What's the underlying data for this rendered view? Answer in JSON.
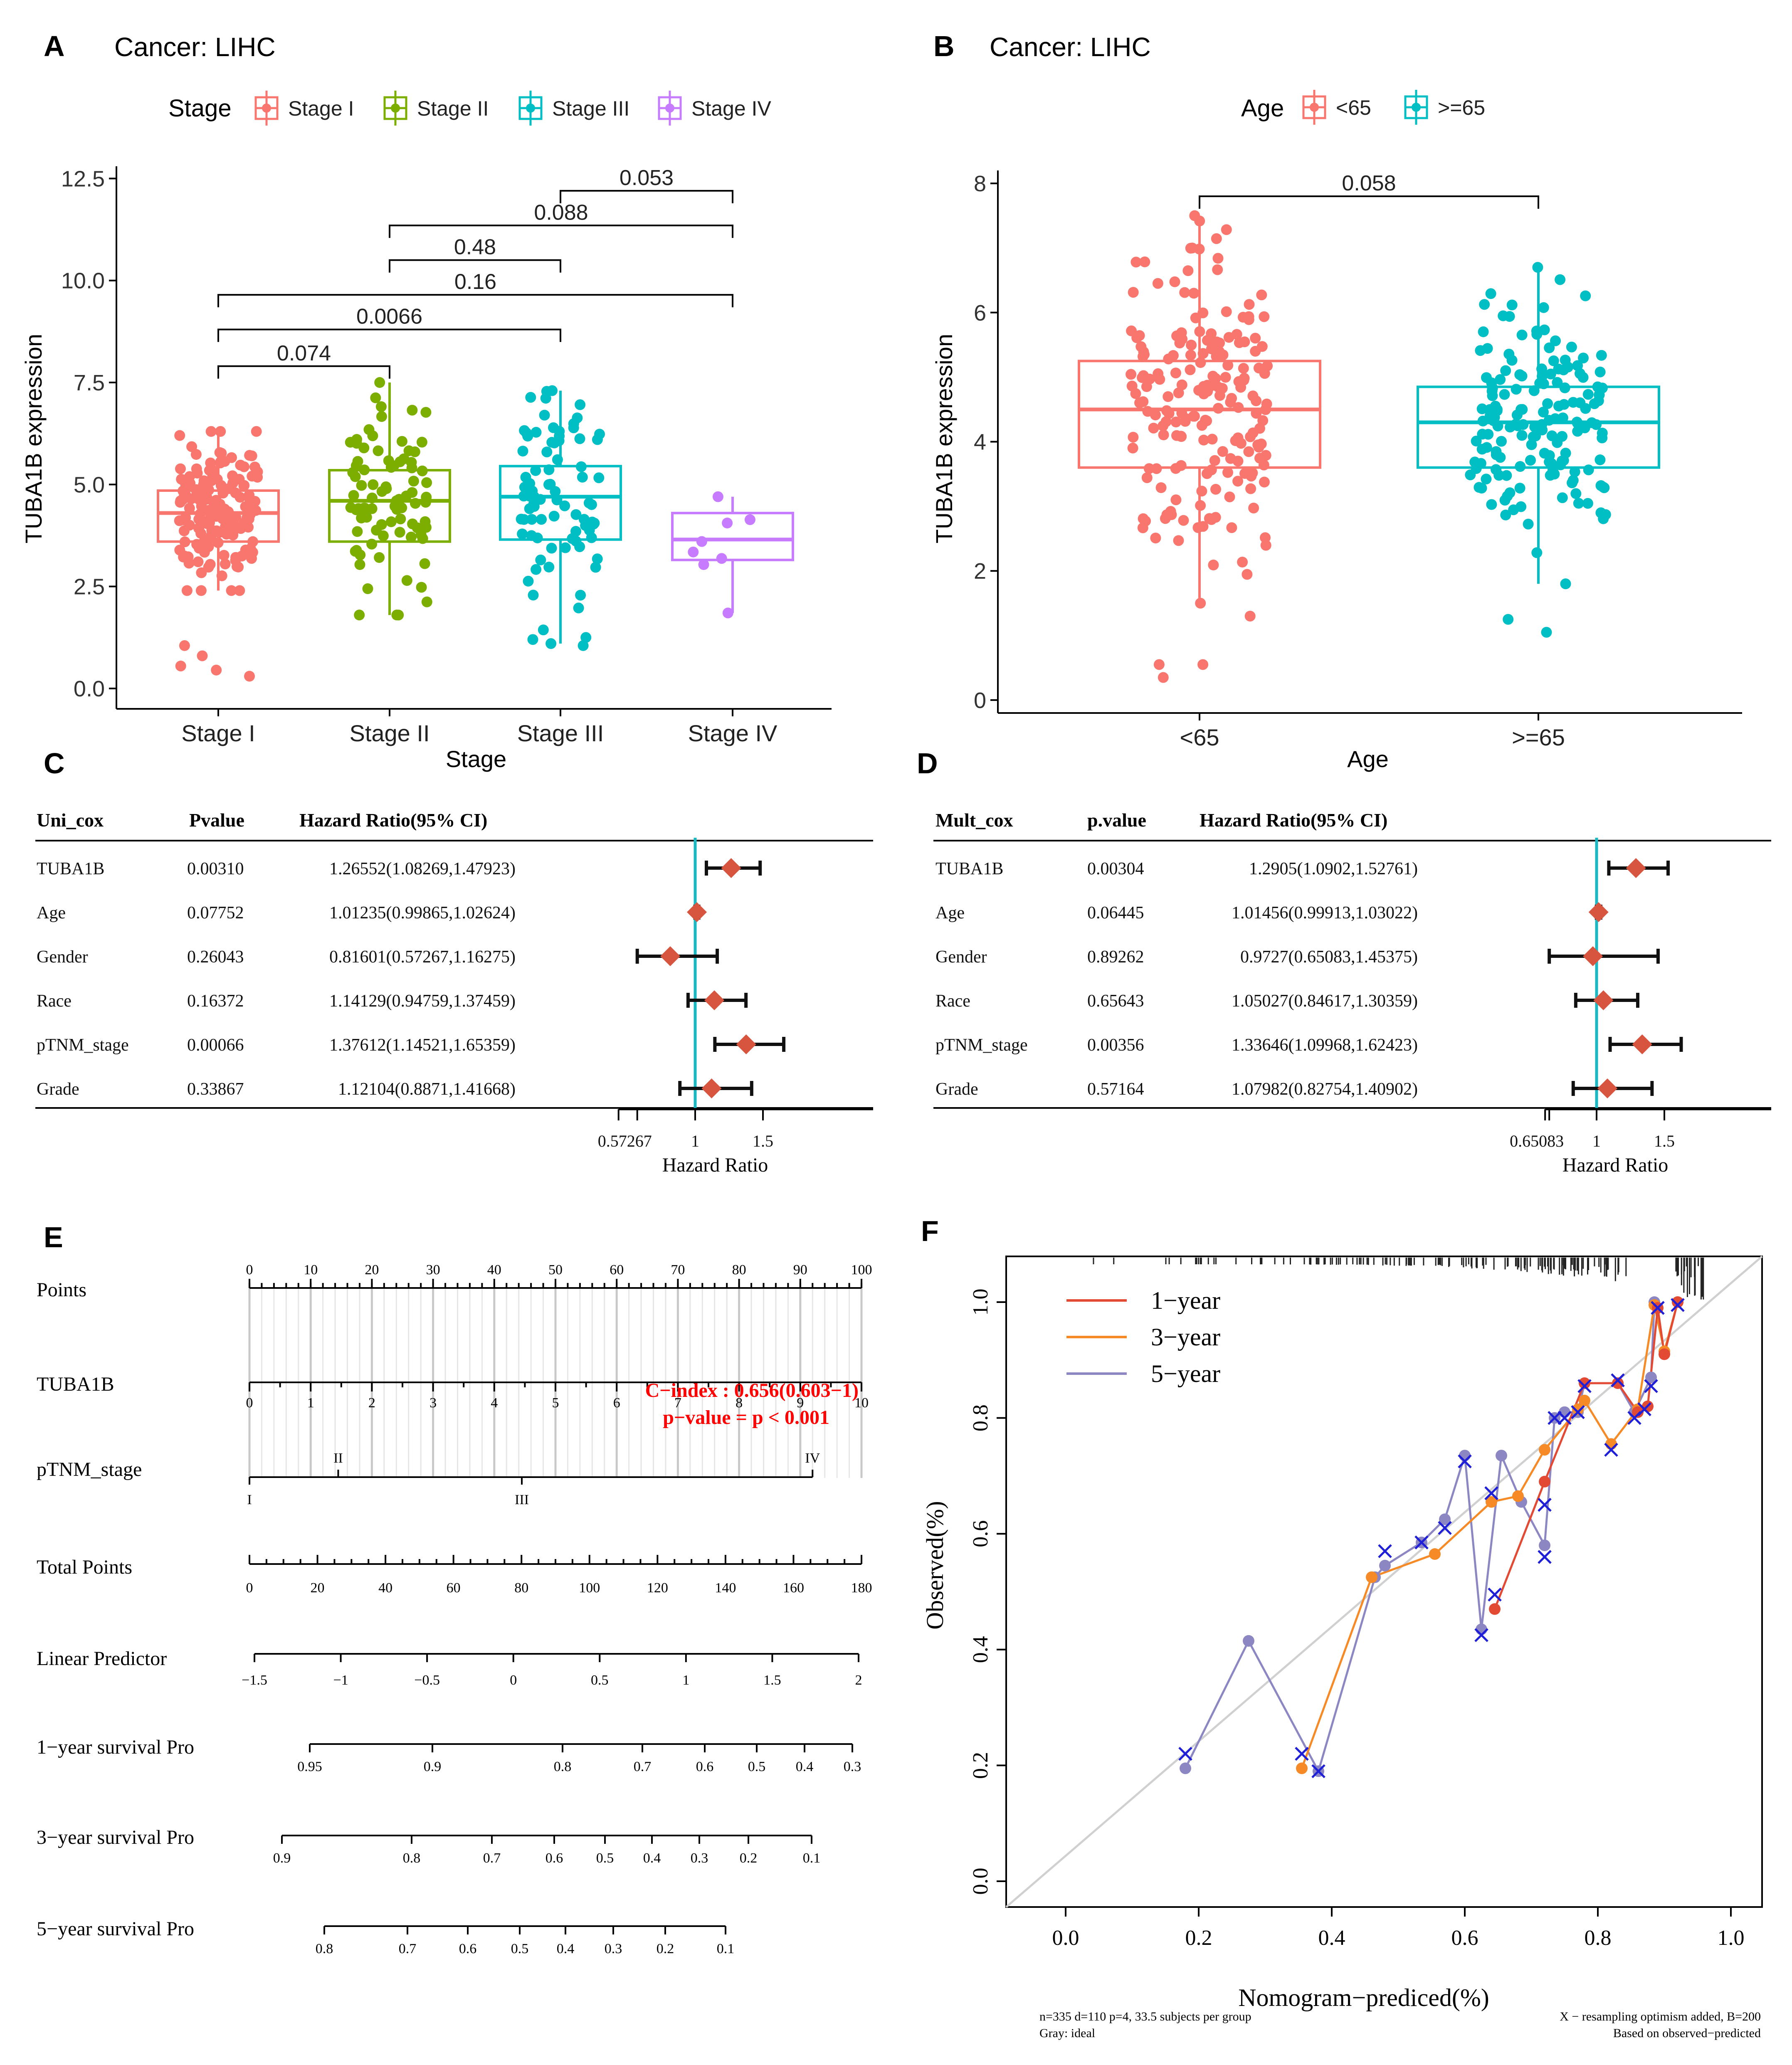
{
  "colors": {
    "stage1": "#F8766D",
    "stage2": "#7CAE00",
    "stage3": "#00BFC4",
    "stage4": "#C77CFF",
    "diamond": "#D7553F",
    "cyan_line": "#19B8C3",
    "red_text": "#FF0000",
    "cal_1yr": "#E34A33",
    "cal_3yr": "#F58A26",
    "cal_5yr": "#8C87C3",
    "cal_x": "#1F1FD8",
    "ideal": "#D0D0D0"
  },
  "panel_a": {
    "label": "A",
    "title": "Cancer: LIHC",
    "legend_title": "Stage",
    "xlabel": "Stage",
    "ylabel": "TUBA1B expression"
  },
  "panel_b": {
    "label": "B",
    "title": "Cancer: LIHC",
    "legend_title": "Age",
    "xlabel": "Age",
    "ylabel": "TUBA1B expression"
  },
  "panel_c": {
    "label": "C",
    "headers": [
      "Uni_cox",
      "Pvalue",
      "Hazard Ratio(95% CI)"
    ],
    "xlabel": "Hazard Ratio",
    "rows": [
      {
        "name": "TUBA1B",
        "p": "0.00310",
        "ci": "1.26552(1.08269,1.47923)"
      },
      {
        "name": "Age",
        "p": "0.07752",
        "ci": "1.01235(0.99865,1.02624)"
      },
      {
        "name": "Gender",
        "p": "0.26043",
        "ci": "0.81601(0.57267,1.16275)"
      },
      {
        "name": "Race",
        "p": "0.16372",
        "ci": "1.14129(0.94759,1.37459)"
      },
      {
        "name": "pTNM_stage",
        "p": "0.00066",
        "ci": "1.37612(1.14521,1.65359)"
      },
      {
        "name": "Grade",
        "p": "0.33867",
        "ci": "1.12104(0.8871,1.41668)"
      }
    ]
  },
  "panel_d": {
    "label": "D",
    "headers": [
      "Mult_cox",
      "p.value",
      "Hazard Ratio(95% CI)"
    ],
    "xlabel": "Hazard Ratio",
    "rows": [
      {
        "name": "TUBA1B",
        "p": "0.00304",
        "ci": "1.2905(1.0902,1.52761)"
      },
      {
        "name": "Age",
        "p": "0.06445",
        "ci": "1.01456(0.99913,1.03022)"
      },
      {
        "name": "Gender",
        "p": "0.89262",
        "ci": "0.9727(0.65083,1.45375)"
      },
      {
        "name": "Race",
        "p": "0.65643",
        "ci": "1.05027(0.84617,1.30359)"
      },
      {
        "name": "pTNM_stage",
        "p": "0.00356",
        "ci": "1.33646(1.09968,1.62423)"
      },
      {
        "name": "Grade",
        "p": "0.57164",
        "ci": "1.07982(0.82754,1.40902)"
      }
    ]
  },
  "panel_e": {
    "label": "E",
    "cindex": "C−index : 0.656(0.603−1)",
    "pvalue": "p−value = p < 0.001"
  },
  "panel_f": {
    "label": "F",
    "xlabel": "Nomogram−prediced(%)",
    "ylabel": "Observed(%)",
    "legend": [
      "1−year",
      "3−year",
      "5−year"
    ],
    "foot_left_1": "n=335 d=110 p=4, 33.5 subjects per group",
    "foot_left_2": "Gray: ideal",
    "foot_right_1": "X − resampling optimism added, B=200",
    "foot_right_2": "Based on observed−predicted"
  },
  "chart_data": [
    {
      "type": "box",
      "panel": "A",
      "title": "Cancer: LIHC",
      "xlabel": "Stage",
      "ylabel": "TUBA1B expression",
      "categories": [
        "Stage I",
        "Stage II",
        "Stage III",
        "Stage IV"
      ],
      "legend_title": "Stage",
      "legend": [
        "Stage I",
        "Stage II",
        "Stage III",
        "Stage IV"
      ],
      "yticks": [
        "0.0",
        "2.5",
        "5.0",
        "7.5",
        "10.0",
        "12.5"
      ],
      "ylim": [
        -0.5,
        12.8
      ],
      "boxes": [
        {
          "min": 2.4,
          "q1": 3.6,
          "median": 4.3,
          "q3": 4.85,
          "max": 6.3,
          "n": 160,
          "outliers": [
            1.05,
            0.55,
            0.8,
            0.3,
            0.45
          ]
        },
        {
          "min": 1.8,
          "q1": 3.6,
          "median": 4.6,
          "q3": 5.35,
          "max": 7.5,
          "n": 85,
          "outliers": []
        },
        {
          "min": 1.1,
          "q1": 3.65,
          "median": 4.7,
          "q3": 5.45,
          "max": 7.3,
          "n": 80,
          "outliers": [
            1.2,
            1.05,
            1.25
          ]
        },
        {
          "min": 1.85,
          "q1": 3.15,
          "median": 3.65,
          "q3": 4.3,
          "max": 4.7,
          "n": 6,
          "outliers": []
        }
      ],
      "comparisons": [
        {
          "from": "Stage I",
          "to": "Stage II",
          "p": "0.074",
          "y": 7.9
        },
        {
          "from": "Stage I",
          "to": "Stage III",
          "p": "0.0066",
          "y": 8.8
        },
        {
          "from": "Stage I",
          "to": "Stage IV",
          "p": "0.16",
          "y": 9.65
        },
        {
          "from": "Stage II",
          "to": "Stage III",
          "p": "0.48",
          "y": 10.5
        },
        {
          "from": "Stage II",
          "to": "Stage IV",
          "p": "0.088",
          "y": 11.35
        },
        {
          "from": "Stage III",
          "to": "Stage IV",
          "p": "0.053",
          "y": 12.2
        }
      ]
    },
    {
      "type": "box",
      "panel": "B",
      "title": "Cancer: LIHC",
      "xlabel": "Age",
      "ylabel": "TUBA1B expression",
      "categories": [
        "<65",
        ">=65"
      ],
      "legend_title": "Age",
      "legend": [
        "<65",
        ">=65"
      ],
      "yticks": [
        "0",
        "2",
        "4",
        "6",
        "8"
      ],
      "ylim": [
        -0.2,
        8.2
      ],
      "boxes": [
        {
          "min": 1.5,
          "q1": 3.6,
          "median": 4.5,
          "q3": 5.25,
          "max": 7.5,
          "n": 190,
          "outliers": [
            0.55,
            0.35,
            1.3,
            0.55
          ]
        },
        {
          "min": 1.8,
          "q1": 3.6,
          "median": 4.3,
          "q3": 4.85,
          "max": 6.7,
          "n": 160,
          "outliers": [
            1.05,
            1.25
          ]
        }
      ],
      "comparisons": [
        {
          "from": "<65",
          "to": ">=65",
          "p": "0.058",
          "y": 7.8
        }
      ]
    },
    {
      "type": "forest",
      "panel": "C",
      "xlabel": "Hazard Ratio",
      "xticks": [
        "0.57267",
        "1",
        "1.5"
      ],
      "xlim": [
        0.57267,
        1.65359
      ],
      "ref": 1,
      "series": [
        {
          "name": "TUBA1B",
          "hr": 1.26552,
          "lo": 1.08269,
          "hi": 1.47923
        },
        {
          "name": "Age",
          "hr": 1.01235,
          "lo": 0.99865,
          "hi": 1.02624
        },
        {
          "name": "Gender",
          "hr": 0.81601,
          "lo": 0.57267,
          "hi": 1.16275
        },
        {
          "name": "Race",
          "hr": 1.14129,
          "lo": 0.94759,
          "hi": 1.37459
        },
        {
          "name": "pTNM_stage",
          "hr": 1.37612,
          "lo": 1.14521,
          "hi": 1.65359
        },
        {
          "name": "Grade",
          "hr": 1.12104,
          "lo": 0.8871,
          "hi": 1.41668
        }
      ]
    },
    {
      "type": "forest",
      "panel": "D",
      "xlabel": "Hazard Ratio",
      "xticks": [
        "0.65083",
        "1",
        "1.5"
      ],
      "xlim": [
        0.65083,
        1.62423
      ],
      "ref": 1,
      "series": [
        {
          "name": "TUBA1B",
          "hr": 1.2905,
          "lo": 1.0902,
          "hi": 1.52761
        },
        {
          "name": "Age",
          "hr": 1.01456,
          "lo": 0.99913,
          "hi": 1.03022
        },
        {
          "name": "Gender",
          "hr": 0.9727,
          "lo": 0.65083,
          "hi": 1.45375
        },
        {
          "name": "Race",
          "hr": 1.05027,
          "lo": 0.84617,
          "hi": 1.30359
        },
        {
          "name": "pTNM_stage",
          "hr": 1.33646,
          "lo": 1.09968,
          "hi": 1.62423
        },
        {
          "name": "Grade",
          "hr": 1.07982,
          "lo": 0.82754,
          "hi": 1.40902
        }
      ]
    },
    {
      "type": "nomogram",
      "panel": "E",
      "scales": [
        {
          "label": "Points",
          "ticks": [
            {
              "v": 0,
              "t": "0"
            },
            {
              "v": 10,
              "t": "10"
            },
            {
              "v": 20,
              "t": "20"
            },
            {
              "v": 30,
              "t": "30"
            },
            {
              "v": 40,
              "t": "40"
            },
            {
              "v": 50,
              "t": "50"
            },
            {
              "v": 60,
              "t": "60"
            },
            {
              "v": 70,
              "t": "70"
            },
            {
              "v": 80,
              "t": "80"
            },
            {
              "v": 90,
              "t": "90"
            },
            {
              "v": 100,
              "t": "100"
            }
          ],
          "range": [
            0,
            100
          ]
        },
        {
          "label": "TUBA1B",
          "ticks": [
            {
              "v": 0,
              "t": "0"
            },
            {
              "v": 1,
              "t": "1"
            },
            {
              "v": 2,
              "t": "2"
            },
            {
              "v": 3,
              "t": "3"
            },
            {
              "v": 4,
              "t": "4"
            },
            {
              "v": 5,
              "t": "5"
            },
            {
              "v": 6,
              "t": "6"
            },
            {
              "v": 7,
              "t": "7"
            },
            {
              "v": 8,
              "t": "8"
            },
            {
              "v": 9,
              "t": "9"
            },
            {
              "v": 10,
              "t": "10"
            }
          ],
          "points_per_unit": 10
        },
        {
          "label": "pTNM_stage",
          "ticks": [
            {
              "v": 0,
              "t": "I",
              "side": "below"
            },
            {
              "v": 14.5,
              "t": "II",
              "side": "above"
            },
            {
              "v": 44.5,
              "t": "III",
              "side": "below"
            },
            {
              "v": 92,
              "t": "IV",
              "side": "above"
            }
          ]
        },
        {
          "label": "Total Points",
          "ticks": [
            {
              "v": 0,
              "t": "0"
            },
            {
              "v": 20,
              "t": "20"
            },
            {
              "v": 40,
              "t": "40"
            },
            {
              "v": 60,
              "t": "60"
            },
            {
              "v": 80,
              "t": "80"
            },
            {
              "v": 100,
              "t": "100"
            },
            {
              "v": 120,
              "t": "120"
            },
            {
              "v": 140,
              "t": "140"
            },
            {
              "v": 160,
              "t": "160"
            },
            {
              "v": 180,
              "t": "180"
            }
          ],
          "range": [
            0,
            180
          ]
        },
        {
          "label": "Linear Predictor",
          "ticks": [
            {
              "v": -1.5,
              "t": "−1.5"
            },
            {
              "v": -1,
              "t": "−1"
            },
            {
              "v": -0.5,
              "t": "−0.5"
            },
            {
              "v": 0,
              "t": "0"
            },
            {
              "v": 0.5,
              "t": "0.5"
            },
            {
              "v": 1,
              "t": "1"
            },
            {
              "v": 1.5,
              "t": "1.5"
            },
            {
              "v": 2,
              "t": "2"
            }
          ]
        },
        {
          "label": "1−year survival Pro",
          "ticks": [
            {
              "t": "0.95"
            },
            {
              "t": "0.9"
            },
            {
              "t": "0.8"
            },
            {
              "t": "0.7"
            },
            {
              "t": "0.6"
            },
            {
              "t": "0.5"
            },
            {
              "t": "0.4"
            },
            {
              "t": "0.3"
            }
          ]
        },
        {
          "label": "3−year survival Pro",
          "ticks": [
            {
              "t": "0.9"
            },
            {
              "t": "0.8"
            },
            {
              "t": "0.7"
            },
            {
              "t": "0.6"
            },
            {
              "t": "0.5"
            },
            {
              "t": "0.4"
            },
            {
              "t": "0.3"
            },
            {
              "t": "0.2"
            },
            {
              "t": "0.1"
            }
          ]
        },
        {
          "label": "5−year survival Pro",
          "ticks": [
            {
              "t": "0.8"
            },
            {
              "t": "0.7"
            },
            {
              "t": "0.6"
            },
            {
              "t": "0.5"
            },
            {
              "t": "0.4"
            },
            {
              "t": "0.3"
            },
            {
              "t": "0.2"
            },
            {
              "t": "0.1"
            }
          ]
        }
      ],
      "annotation": [
        "C−index : 0.656(0.603−1)",
        "p−value = p < 0.001"
      ]
    },
    {
      "type": "line",
      "panel": "F",
      "xlabel": "Nomogram−prediced(%)",
      "ylabel": "Observed(%)",
      "xlim": [
        -0.03,
        1.04
      ],
      "ylim": [
        -0.03,
        1.04
      ],
      "xticks": [
        "0.0",
        "0.2",
        "0.4",
        "0.6",
        "0.8",
        "1.0"
      ],
      "yticks": [
        "0.0",
        "0.2",
        "0.4",
        "0.6",
        "0.8",
        "1.0"
      ],
      "series": [
        {
          "name": "1−year",
          "points": [
            [
              0.645,
              0.47
            ],
            [
              0.72,
              0.69
            ],
            [
              0.78,
              0.86
            ],
            [
              0.83,
              0.86
            ],
            [
              0.86,
              0.81
            ],
            [
              0.875,
              0.82
            ],
            [
              0.89,
              0.99
            ],
            [
              0.9,
              0.91
            ],
            [
              0.92,
              1.0
            ]
          ]
        },
        {
          "name": "3−year",
          "points": [
            [
              0.355,
              0.195
            ],
            [
              0.46,
              0.525
            ],
            [
              0.555,
              0.565
            ],
            [
              0.64,
              0.655
            ],
            [
              0.68,
              0.665
            ],
            [
              0.72,
              0.745
            ],
            [
              0.77,
              0.815
            ],
            [
              0.78,
              0.83
            ],
            [
              0.82,
              0.755
            ],
            [
              0.86,
              0.815
            ],
            [
              0.885,
              0.995
            ],
            [
              0.9,
              0.915
            ],
            [
              0.92,
              1.0
            ]
          ]
        },
        {
          "name": "5−year",
          "points": [
            [
              0.18,
              0.195
            ],
            [
              0.275,
              0.415
            ],
            [
              0.38,
              0.19
            ],
            [
              0.465,
              0.525
            ],
            [
              0.48,
              0.545
            ],
            [
              0.535,
              0.585
            ],
            [
              0.57,
              0.625
            ],
            [
              0.6,
              0.735
            ],
            [
              0.625,
              0.435
            ],
            [
              0.655,
              0.735
            ],
            [
              0.685,
              0.655
            ],
            [
              0.72,
              0.58
            ],
            [
              0.735,
              0.8
            ],
            [
              0.75,
              0.81
            ],
            [
              0.77,
              0.81
            ],
            [
              0.78,
              0.86
            ],
            [
              0.83,
              0.86
            ],
            [
              0.855,
              0.81
            ],
            [
              0.88,
              0.87
            ],
            [
              0.885,
              1.0
            ]
          ]
        }
      ],
      "crosses": [
        [
          0.18,
          0.22
        ],
        [
          0.355,
          0.22
        ],
        [
          0.38,
          0.19
        ],
        [
          0.48,
          0.57
        ],
        [
          0.535,
          0.585
        ],
        [
          0.57,
          0.61
        ],
        [
          0.6,
          0.725
        ],
        [
          0.625,
          0.425
        ],
        [
          0.64,
          0.67
        ],
        [
          0.645,
          0.495
        ],
        [
          0.72,
          0.56
        ],
        [
          0.72,
          0.65
        ],
        [
          0.735,
          0.8
        ],
        [
          0.75,
          0.8
        ],
        [
          0.77,
          0.81
        ],
        [
          0.78,
          0.855
        ],
        [
          0.82,
          0.745
        ],
        [
          0.83,
          0.865
        ],
        [
          0.855,
          0.8
        ],
        [
          0.87,
          0.815
        ],
        [
          0.88,
          0.855
        ],
        [
          0.89,
          0.99
        ],
        [
          0.92,
          0.995
        ]
      ],
      "legend": [
        "1−year",
        "3−year",
        "5−year"
      ]
    }
  ]
}
